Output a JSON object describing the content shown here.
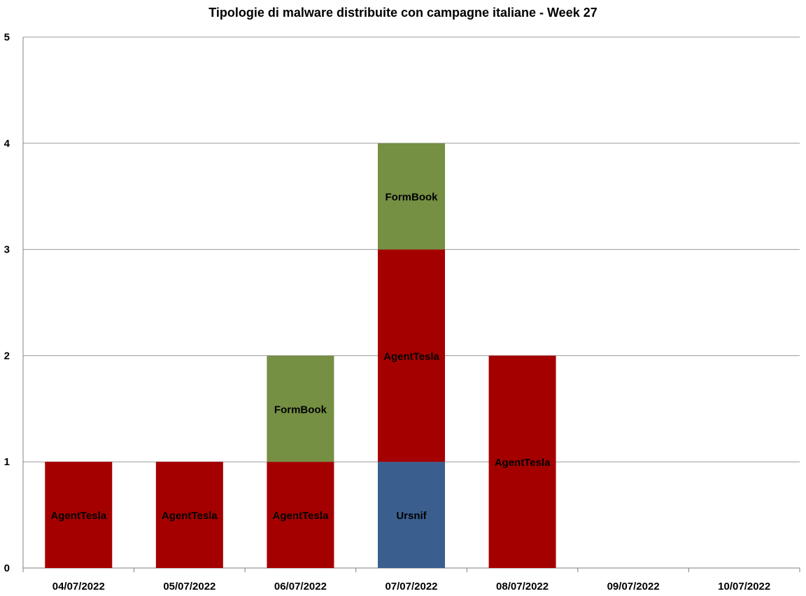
{
  "chart_data": {
    "type": "bar",
    "stacked": true,
    "title": "Tipologie di malware distribuite con campagne italiane - Week 27",
    "xlabel": "",
    "ylabel": "",
    "ylim": [
      0,
      5
    ],
    "yticks": [
      0,
      1,
      2,
      3,
      4,
      5
    ],
    "grid": true,
    "legend": "none",
    "categories": [
      "04/07/2022",
      "05/07/2022",
      "06/07/2022",
      "07/07/2022",
      "08/07/2022",
      "09/07/2022",
      "10/07/2022"
    ],
    "series": [
      {
        "name": "Ursnif",
        "color": "#3A5F8F",
        "values": [
          0,
          0,
          0,
          1,
          0,
          0,
          0
        ]
      },
      {
        "name": "AgentTesla",
        "color": "#A50000",
        "values": [
          1,
          1,
          1,
          2,
          2,
          0,
          0
        ]
      },
      {
        "name": "FormBook",
        "color": "#758F43",
        "values": [
          0,
          0,
          1,
          1,
          0,
          0,
          0
        ]
      }
    ],
    "colors": {
      "grid": "#9A9A9A",
      "axis": "#808080"
    }
  }
}
